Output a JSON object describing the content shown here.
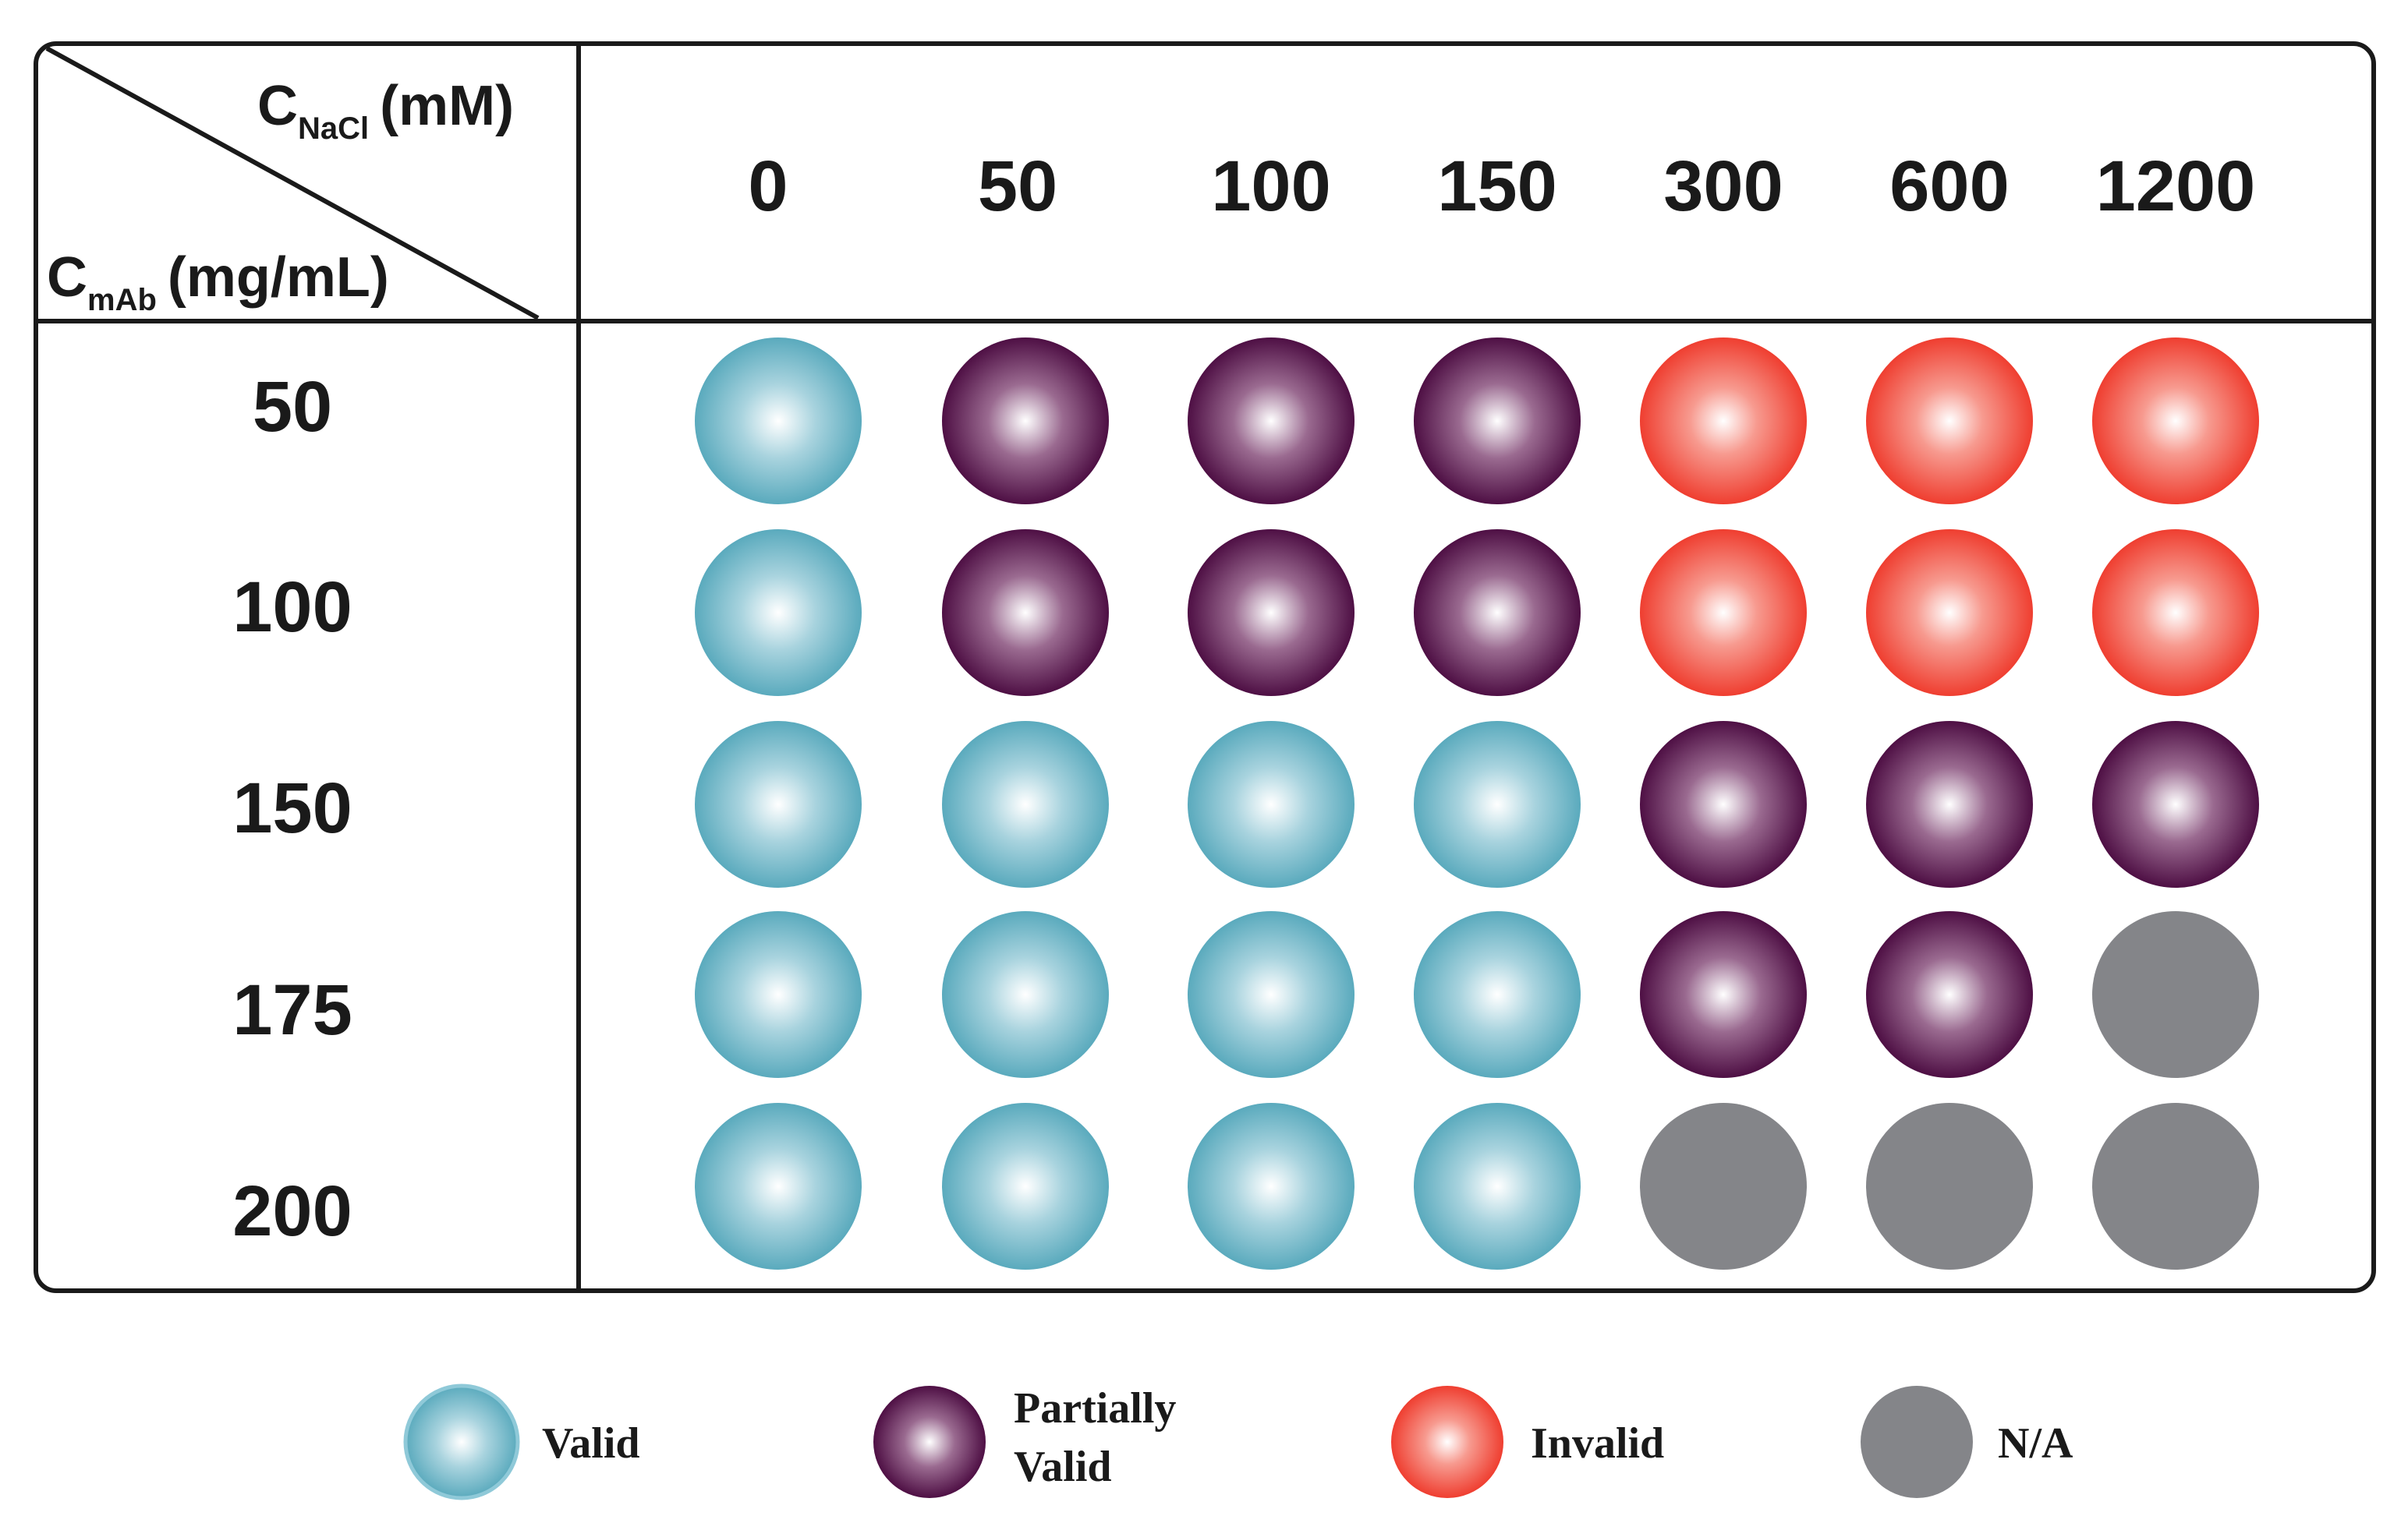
{
  "axis_labels": {
    "nacl_main": "C",
    "nacl_sub": "NaCl",
    "nacl_unit": "(mM)",
    "mab_main": "C",
    "mab_sub": "mAb",
    "mab_unit": "(mg/mL)"
  },
  "columns": [
    "0",
    "50",
    "100",
    "150",
    "300",
    "600",
    "1200"
  ],
  "rows": [
    "50",
    "100",
    "150",
    "175",
    "200"
  ],
  "grid": [
    [
      "valid",
      "partial",
      "partial",
      "partial",
      "invalid",
      "invalid",
      "invalid"
    ],
    [
      "valid",
      "partial",
      "partial",
      "partial",
      "invalid",
      "invalid",
      "invalid"
    ],
    [
      "valid",
      "valid",
      "valid",
      "valid",
      "partial",
      "partial",
      "partial"
    ],
    [
      "valid",
      "valid",
      "valid",
      "valid",
      "partial",
      "partial",
      "na"
    ],
    [
      "valid",
      "valid",
      "valid",
      "valid",
      "na",
      "na",
      "na"
    ]
  ],
  "legend": {
    "valid": "Valid",
    "partial_line1": "Partially",
    "partial_line2": "Valid",
    "invalid": "Invalid",
    "na": "N/A"
  },
  "colors": {
    "valid_edge": "#5aaabd",
    "partial_edge": "#4e0f44",
    "invalid_edge": "#ef3e30",
    "na": "#848589"
  }
}
